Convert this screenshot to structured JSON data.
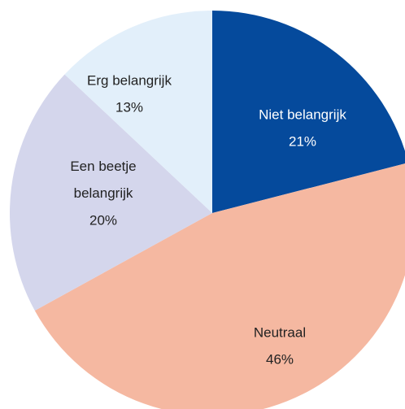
{
  "chart_data": {
    "type": "pie",
    "categories": [
      "Niet belangrijk",
      "Neutraal",
      "Een beetje belangrijk",
      "Erg belangrijk"
    ],
    "values": [
      21,
      46,
      20,
      13
    ],
    "value_labels": [
      "21%",
      "46%",
      "20%",
      "13%"
    ],
    "colors": [
      "#054a9c",
      "#f5b8a1",
      "#d4d6ec",
      "#e2effa"
    ],
    "label_colors": [
      "#ffffff",
      "#222222",
      "#222222",
      "#222222"
    ]
  }
}
